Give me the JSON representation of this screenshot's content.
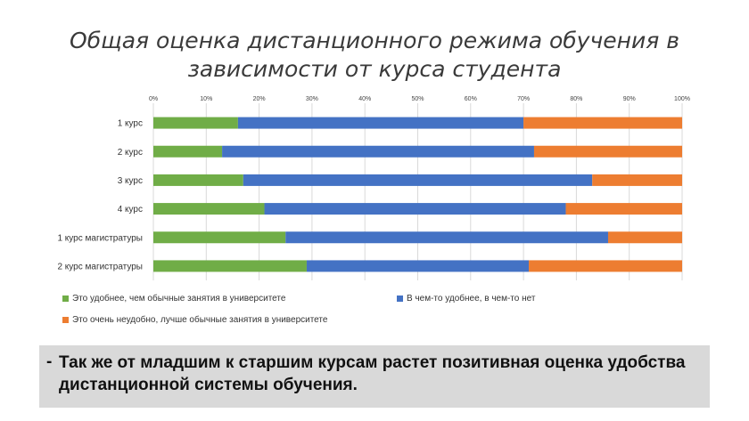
{
  "title": "Общая оценка дистанционного режима обучения в зависимости от курса студента",
  "note": {
    "bullet": "-",
    "text": "Так же от младшим к старшим курсам растет позитивная оценка удобства дистанционной системы обучения."
  },
  "colors": {
    "green": "#70ad47",
    "blue": "#4472c4",
    "orange": "#ed7d31"
  },
  "chart_data": {
    "type": "bar",
    "orientation": "horizontal",
    "stacked": "percent",
    "categories": [
      "1 курс",
      "2 курс",
      "3 курс",
      "4 курс",
      "1 курс магистратуры",
      "2 курс магистратуры"
    ],
    "series": [
      {
        "name": "Это удобнее, чем обычные занятия в университете",
        "color": "#70ad47",
        "values": [
          16,
          13,
          17,
          21,
          25,
          29
        ]
      },
      {
        "name": "В чем-то удобнее, в чем-то нет",
        "color": "#4472c4",
        "values": [
          54,
          59,
          66,
          57,
          61,
          42
        ]
      },
      {
        "name": "Это очень неудобно, лучше обычные занятия в университете",
        "color": "#ed7d31",
        "values": [
          30,
          28,
          17,
          22,
          14,
          29
        ]
      }
    ],
    "x_ticks": [
      "0%",
      "10%",
      "20%",
      "30%",
      "40%",
      "50%",
      "60%",
      "70%",
      "80%",
      "90%",
      "100%"
    ],
    "xlim": [
      0,
      100
    ],
    "grid": true,
    "legend_position": "bottom"
  }
}
